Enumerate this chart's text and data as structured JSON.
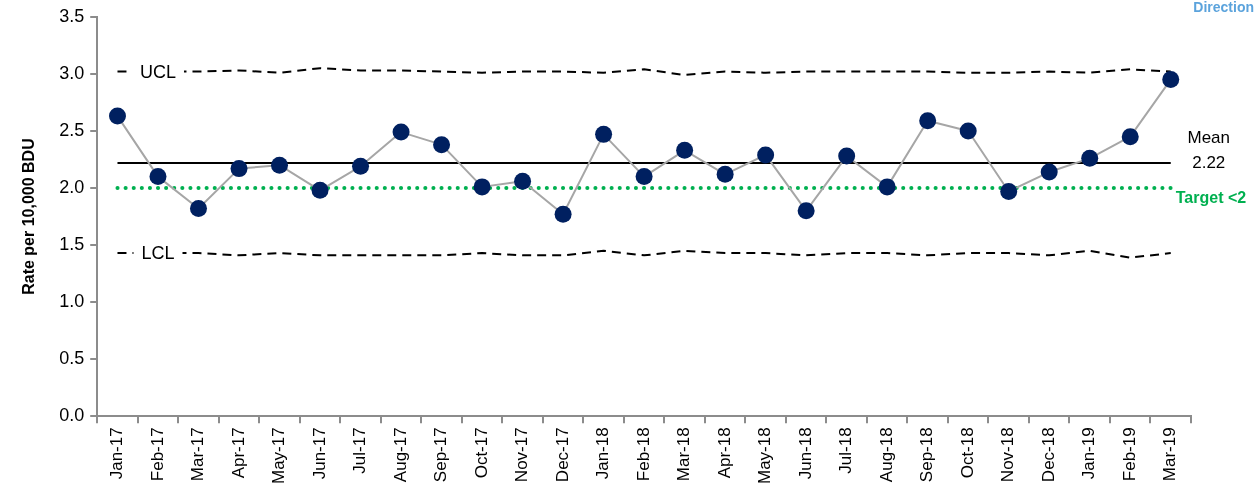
{
  "chart_data": {
    "type": "line",
    "ylabel": "Rate per 10,000 BDU",
    "categories": [
      "Jan-17",
      "Feb-17",
      "Mar-17",
      "Apr-17",
      "May-17",
      "Jun-17",
      "Jul-17",
      "Aug-17",
      "Sep-17",
      "Oct-17",
      "Nov-17",
      "Dec-17",
      "Jan-18",
      "Feb-18",
      "Mar-18",
      "Apr-18",
      "May-18",
      "Jun-18",
      "Jul-18",
      "Aug-18",
      "Sep-18",
      "Oct-18",
      "Nov-18",
      "Dec-18",
      "Jan-19",
      "Feb-19",
      "Mar-19"
    ],
    "series": [
      {
        "color": "#002060",
        "marker": "circle",
        "line_style": "solid",
        "values": [
          2.63,
          2.1,
          1.82,
          2.17,
          2.2,
          1.98,
          2.19,
          2.49,
          2.38,
          2.01,
          2.06,
          1.77,
          2.47,
          2.1,
          2.33,
          2.12,
          2.29,
          1.8,
          2.28,
          2.01,
          2.59,
          2.5,
          1.97,
          2.14,
          2.26,
          2.45,
          2.95
        ]
      },
      {
        "name": "UCL",
        "color": "#000000",
        "marker": "none",
        "line_style": "dashed",
        "values": [
          3.02,
          null,
          3.02,
          3.03,
          3.01,
          3.05,
          3.03,
          3.03,
          3.02,
          3.01,
          3.02,
          3.02,
          3.01,
          3.04,
          2.99,
          3.02,
          3.01,
          3.02,
          3.02,
          3.02,
          3.02,
          3.01,
          3.01,
          3.02,
          3.01,
          3.04,
          3.02
        ]
      },
      {
        "name": "LCL",
        "color": "#000000",
        "marker": "none",
        "line_style": "dashed",
        "values": [
          1.43,
          null,
          1.43,
          1.41,
          1.43,
          1.41,
          1.41,
          1.41,
          1.41,
          1.43,
          1.41,
          1.41,
          1.45,
          1.41,
          1.45,
          1.43,
          1.43,
          1.41,
          1.43,
          1.43,
          1.41,
          1.43,
          1.43,
          1.41,
          1.45,
          1.39,
          1.43
        ]
      }
    ],
    "ylim": [
      0,
      3.5
    ],
    "yticks": [
      {
        "value": 0,
        "label": "0.0"
      },
      {
        "value": 0.5,
        "label": "0.5"
      },
      {
        "value": 1,
        "label": "1.0"
      },
      {
        "value": 1.5,
        "label": "1.5"
      },
      {
        "value": 2,
        "label": "2.0"
      },
      {
        "value": 2.5,
        "label": "2.5"
      },
      {
        "value": 3,
        "label": "3.0"
      },
      {
        "value": 3.5,
        "label": "3.5"
      }
    ],
    "ref_lines": [
      {
        "axis": "y",
        "value": 2.22,
        "label": "Mean\n2.22",
        "color": "#000000",
        "line_style": "solid"
      },
      {
        "axis": "y",
        "value": 2,
        "label": "Target <2",
        "color": "#00b050",
        "line_style": "dotted"
      }
    ],
    "annotations": [
      "Direction"
    ],
    "grid": false,
    "legend": false
  }
}
